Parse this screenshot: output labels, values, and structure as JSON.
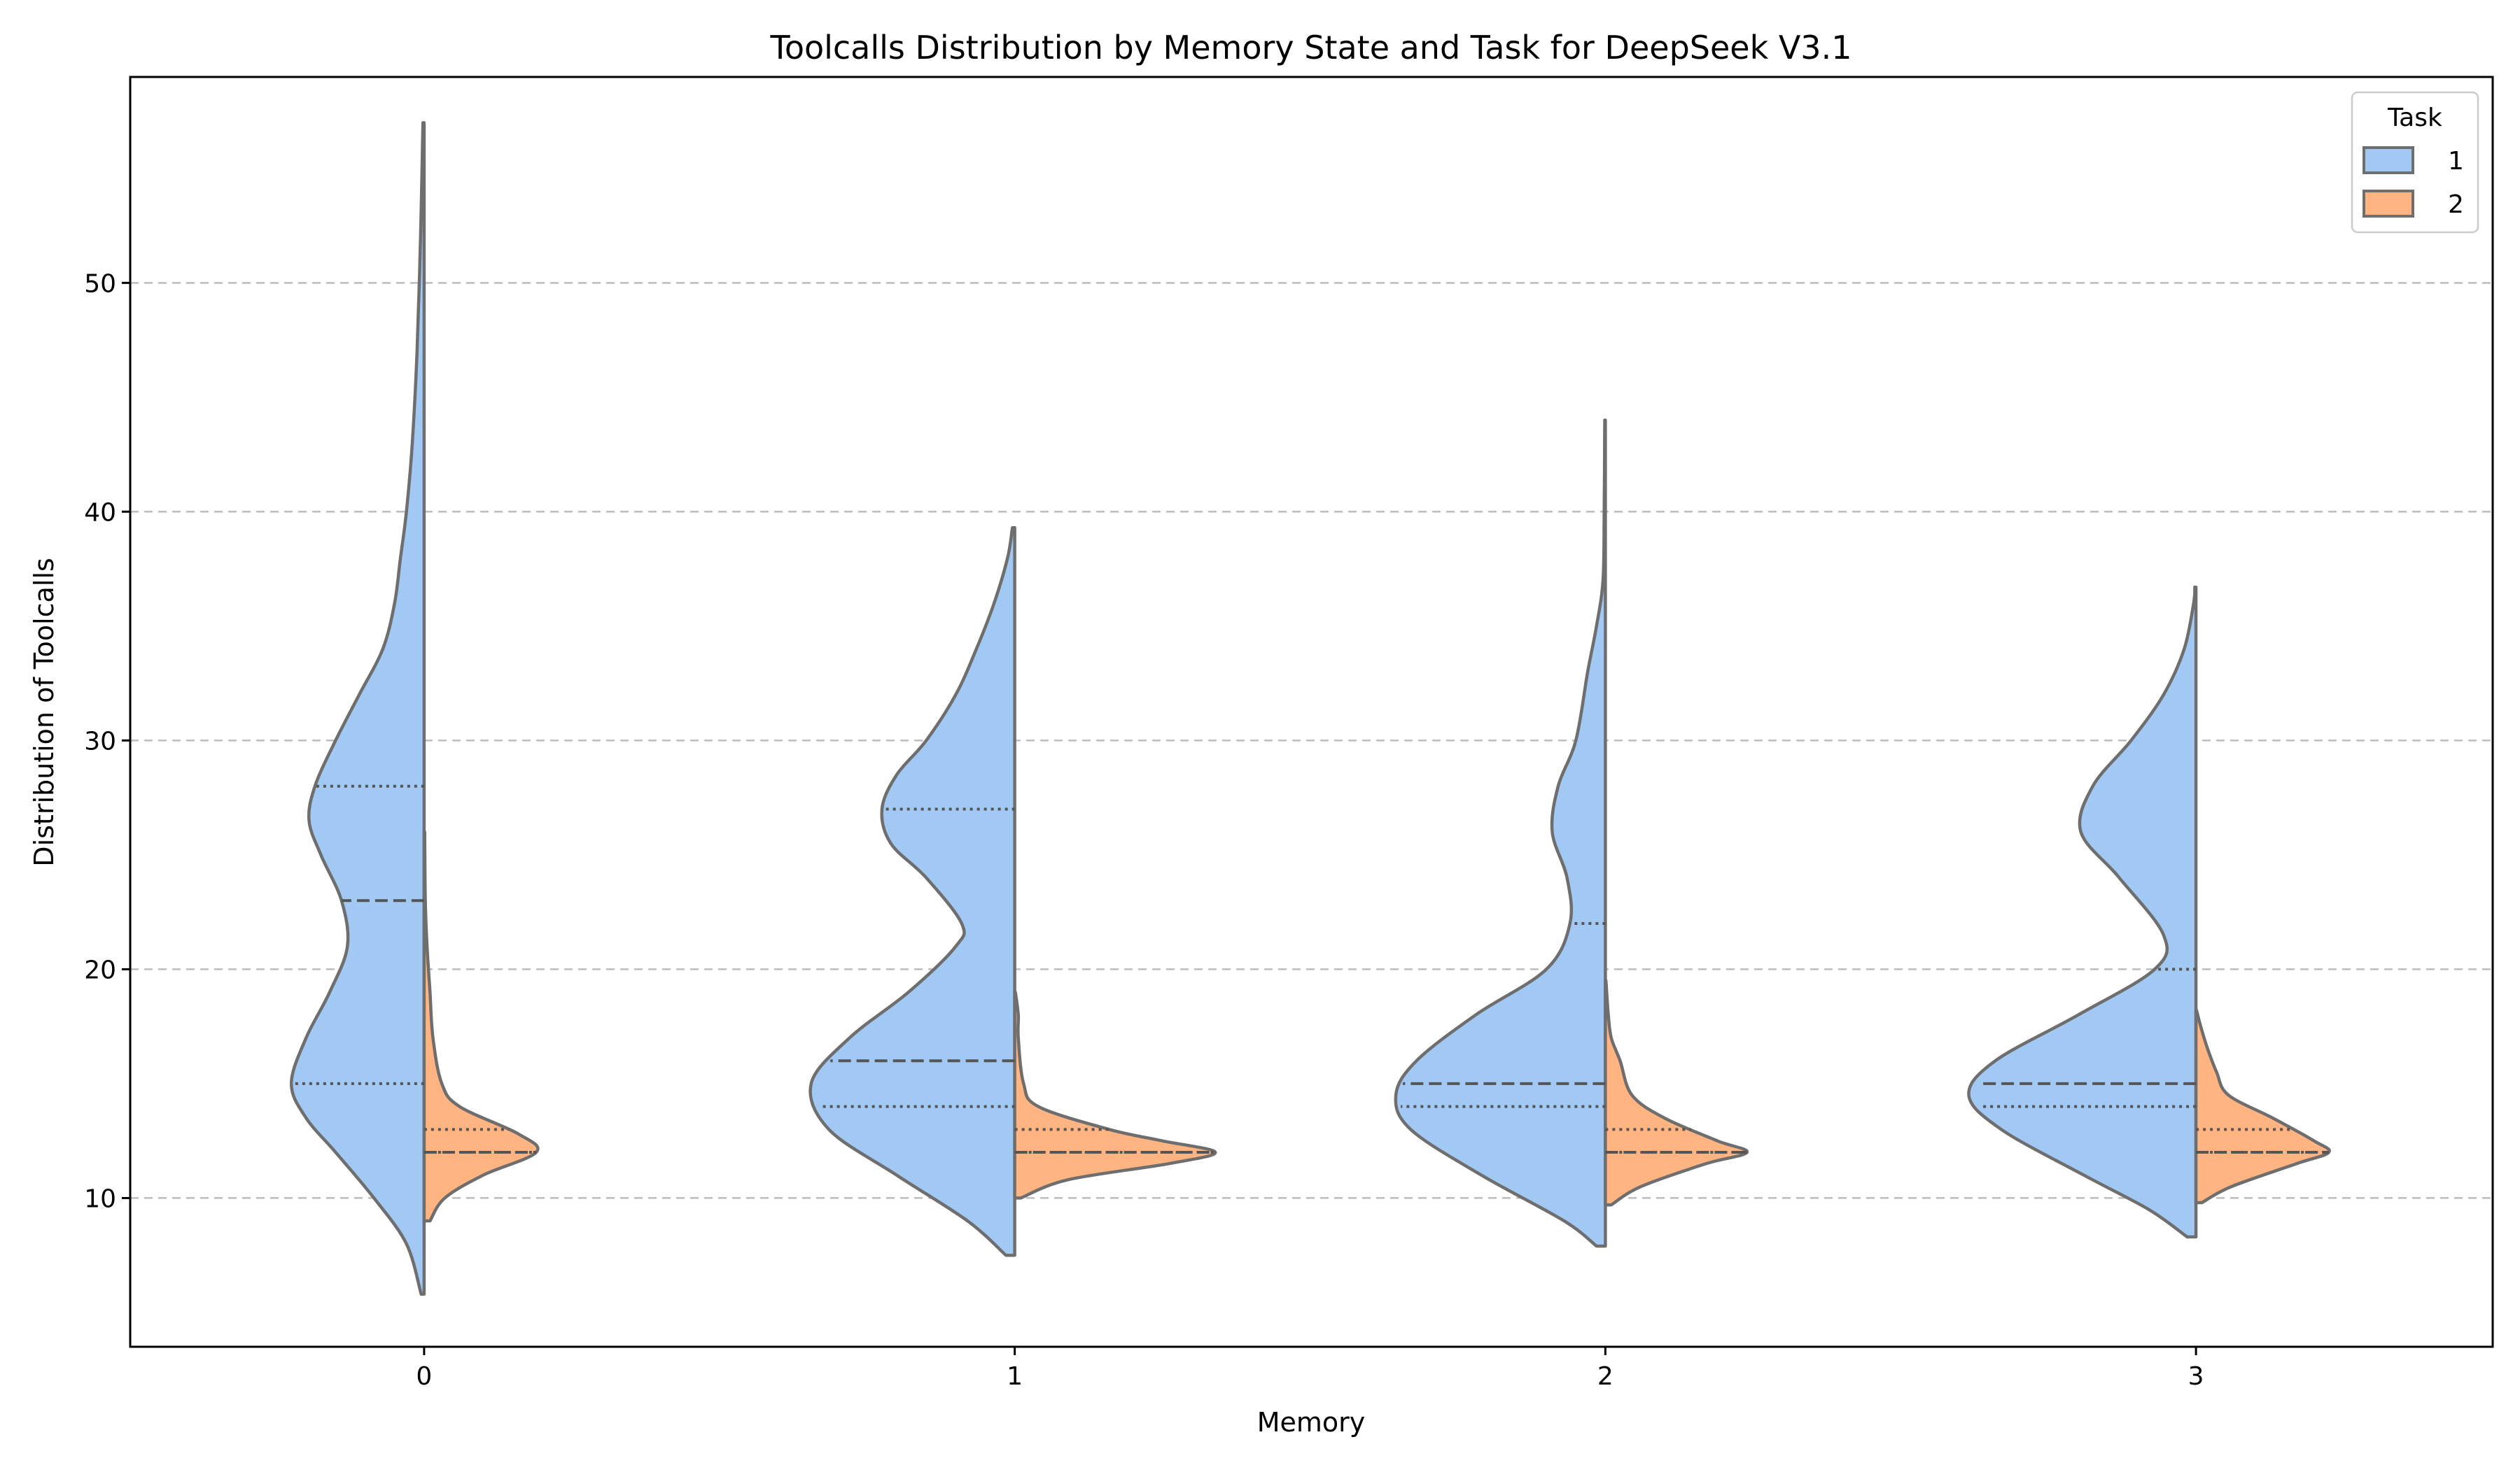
{
  "chart_data": {
    "type": "violin",
    "title": "Toolcalls Distribution by Memory State and Task for DeepSeek V3.1",
    "xlabel": "Memory",
    "ylabel": "Distribution of Toolcalls",
    "categories": [
      "0",
      "1",
      "2",
      "3"
    ],
    "ylim": [
      3.5,
      59
    ],
    "yticks": [
      10,
      20,
      30,
      40,
      50
    ],
    "grid": "y-dashed",
    "split": true,
    "legend": {
      "title": "Task",
      "position": "top-right",
      "entries": [
        {
          "label": "1",
          "color": "#a1c9f4"
        },
        {
          "label": "2",
          "color": "#ffb482"
        }
      ]
    },
    "series": [
      {
        "name": "1",
        "side": "left",
        "color": "#a1c9f4",
        "violins": [
          {
            "min": 5.8,
            "max": 57,
            "q1": 15,
            "median": 23,
            "q3": 28,
            "profile": [
              [
                5.8,
                0.005
              ],
              [
                8,
                0.03
              ],
              [
                10,
                0.085
              ],
              [
                12,
                0.15
              ],
              [
                13.5,
                0.2
              ],
              [
                15,
                0.225
              ],
              [
                17,
                0.2
              ],
              [
                19,
                0.16
              ],
              [
                21,
                0.13
              ],
              [
                23,
                0.14
              ],
              [
                25,
                0.175
              ],
              [
                26.5,
                0.195
              ],
              [
                28,
                0.185
              ],
              [
                30,
                0.15
              ],
              [
                32,
                0.11
              ],
              [
                34,
                0.07
              ],
              [
                36,
                0.05
              ],
              [
                38,
                0.04
              ],
              [
                40,
                0.03
              ],
              [
                43,
                0.02
              ],
              [
                47,
                0.012
              ],
              [
                52,
                0.006
              ],
              [
                57,
                0.002
              ]
            ]
          },
          {
            "min": 7.5,
            "max": 39.3,
            "q1": 14,
            "median": 16,
            "q3": 27,
            "profile": [
              [
                7.5,
                0.015
              ],
              [
                9,
                0.08
              ],
              [
                11,
                0.2
              ],
              [
                13,
                0.315
              ],
              [
                15,
                0.345
              ],
              [
                17,
                0.28
              ],
              [
                19,
                0.18
              ],
              [
                21,
                0.1
              ],
              [
                22,
                0.09
              ],
              [
                24,
                0.15
              ],
              [
                25.5,
                0.21
              ],
              [
                27,
                0.225
              ],
              [
                28.5,
                0.2
              ],
              [
                30,
                0.15
              ],
              [
                32,
                0.1
              ],
              [
                34,
                0.065
              ],
              [
                36,
                0.035
              ],
              [
                38,
                0.012
              ],
              [
                39.3,
                0.004
              ]
            ]
          },
          {
            "min": 7.9,
            "max": 44,
            "q1": 14,
            "median": 15,
            "q3": 22,
            "profile": [
              [
                7.9,
                0.015
              ],
              [
                9,
                0.07
              ],
              [
                11,
                0.21
              ],
              [
                13,
                0.33
              ],
              [
                14.5,
                0.355
              ],
              [
                16,
                0.32
              ],
              [
                18,
                0.22
              ],
              [
                20,
                0.1
              ],
              [
                22,
                0.06
              ],
              [
                24,
                0.065
              ],
              [
                26,
                0.09
              ],
              [
                28,
                0.08
              ],
              [
                30,
                0.05
              ],
              [
                33,
                0.03
              ],
              [
                35,
                0.015
              ],
              [
                37,
                0.004
              ],
              [
                40,
                0.002
              ],
              [
                44,
                0.001
              ]
            ]
          },
          {
            "min": 8.3,
            "max": 36.7,
            "q1": 14,
            "median": 15,
            "q3": 20,
            "profile": [
              [
                8.3,
                0.015
              ],
              [
                9.5,
                0.08
              ],
              [
                11,
                0.19
              ],
              [
                13,
                0.33
              ],
              [
                14.5,
                0.385
              ],
              [
                16,
                0.34
              ],
              [
                18,
                0.2
              ],
              [
                20,
                0.07
              ],
              [
                21.5,
                0.055
              ],
              [
                24,
                0.13
              ],
              [
                26,
                0.195
              ],
              [
                28,
                0.175
              ],
              [
                30,
                0.11
              ],
              [
                32,
                0.055
              ],
              [
                34,
                0.02
              ],
              [
                36,
                0.004
              ],
              [
                36.7,
                0.002
              ]
            ]
          }
        ]
      },
      {
        "name": "2",
        "side": "right",
        "color": "#ffb482",
        "violins": [
          {
            "min": 9,
            "max": 26,
            "q1": 12,
            "median": 12,
            "q3": 13,
            "profile": [
              [
                9,
                0.01
              ],
              [
                10,
                0.035
              ],
              [
                11,
                0.1
              ],
              [
                12,
                0.19
              ],
              [
                12.8,
                0.16
              ],
              [
                14,
                0.06
              ],
              [
                15,
                0.03
              ],
              [
                17,
                0.015
              ],
              [
                19,
                0.01
              ],
              [
                21,
                0.005
              ],
              [
                23,
                0.002
              ],
              [
                26,
                0.001
              ]
            ]
          },
          {
            "min": 10,
            "max": 19,
            "q1": 12,
            "median": 12,
            "q3": 13,
            "profile": [
              [
                10,
                0.01
              ],
              [
                10.8,
                0.09
              ],
              [
                11.5,
                0.26
              ],
              [
                12,
                0.34
              ],
              [
                12.5,
                0.25
              ],
              [
                13,
                0.16
              ],
              [
                14,
                0.04
              ],
              [
                15,
                0.015
              ],
              [
                17,
                0.006
              ],
              [
                18,
                0.006
              ],
              [
                19,
                0.001
              ]
            ]
          },
          {
            "min": 9.7,
            "max": 19.5,
            "q1": 12,
            "median": 12,
            "q3": 13,
            "profile": [
              [
                9.7,
                0.01
              ],
              [
                10.5,
                0.06
              ],
              [
                11.5,
                0.17
              ],
              [
                12,
                0.24
              ],
              [
                12.5,
                0.19
              ],
              [
                13.5,
                0.1
              ],
              [
                14.5,
                0.045
              ],
              [
                16,
                0.025
              ],
              [
                17,
                0.01
              ],
              [
                18,
                0.005
              ],
              [
                19.5,
                0.001
              ]
            ]
          },
          {
            "min": 9.8,
            "max": 18.2,
            "q1": 12,
            "median": 12,
            "q3": 13,
            "profile": [
              [
                9.8,
                0.01
              ],
              [
                10.5,
                0.06
              ],
              [
                11.5,
                0.17
              ],
              [
                12,
                0.225
              ],
              [
                12.5,
                0.2
              ],
              [
                13.5,
                0.13
              ],
              [
                14.5,
                0.055
              ],
              [
                15.5,
                0.035
              ],
              [
                16.5,
                0.02
              ],
              [
                17.5,
                0.008
              ],
              [
                18.2,
                0.001
              ]
            ]
          }
        ]
      }
    ]
  }
}
